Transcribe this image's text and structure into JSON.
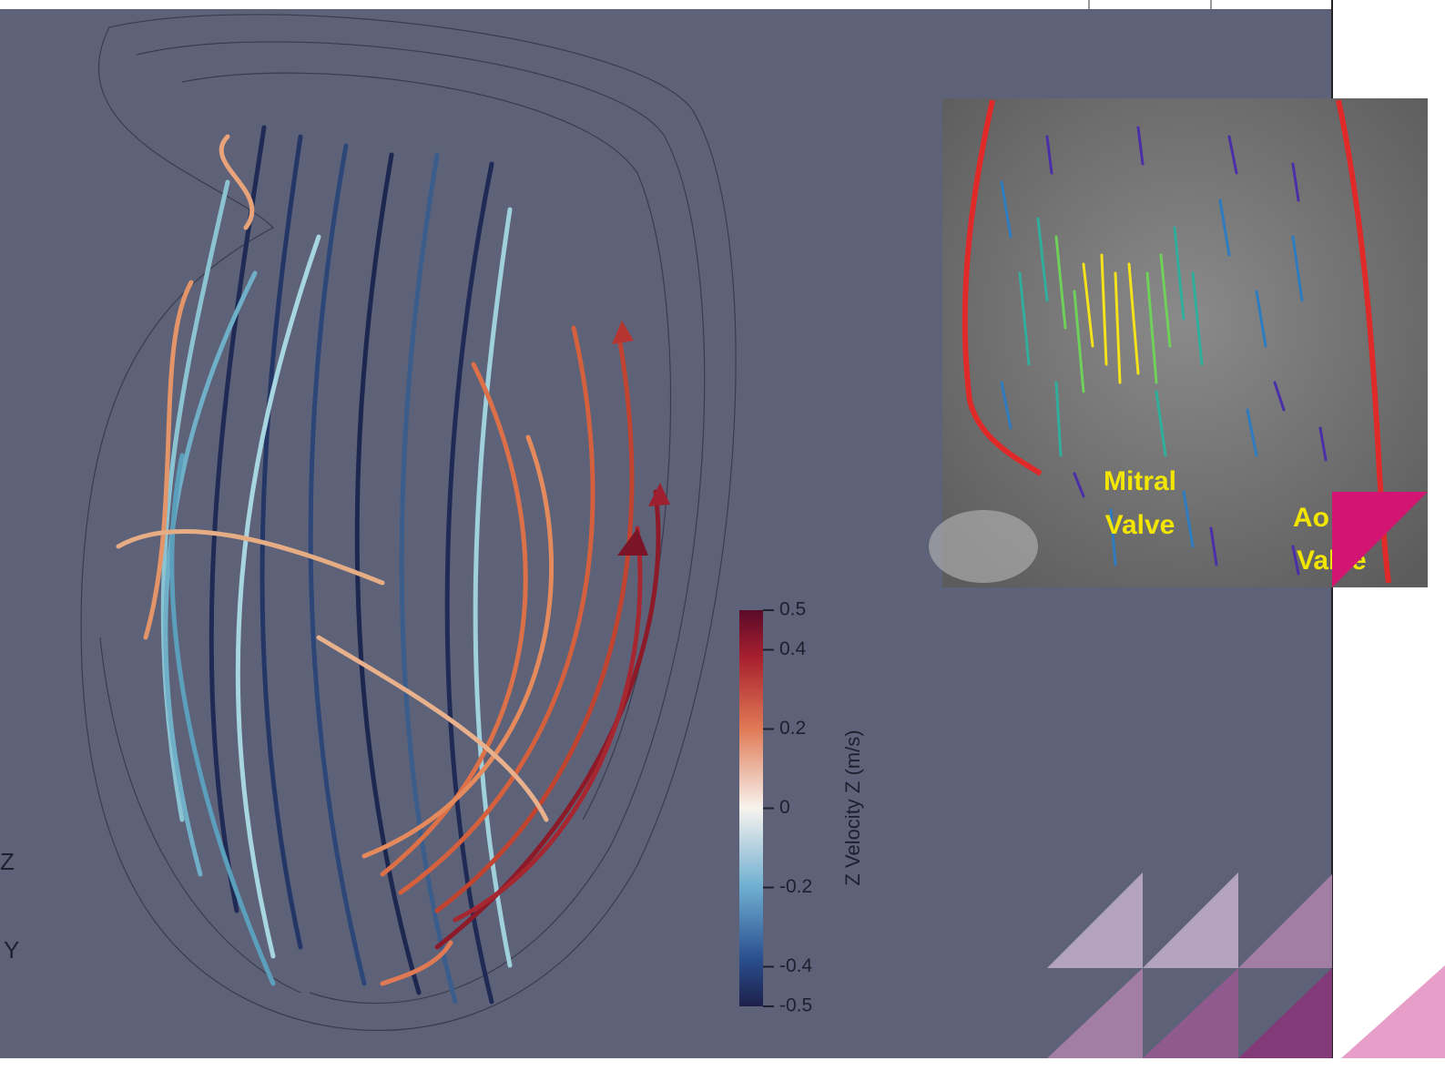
{
  "colorbar": {
    "title": "Z Velocity Z (m/s)",
    "range": [
      -0.5,
      0.5
    ],
    "ticks": [
      0.5,
      0.4,
      0.2,
      0,
      -0.2,
      -0.4,
      -0.5
    ]
  },
  "axes_widget": {
    "z": "Z",
    "y": "Y"
  },
  "inset": {
    "mitral_label": [
      "Mitral",
      "Valve"
    ],
    "aortic_label": [
      "Ao",
      "Valve"
    ]
  }
}
